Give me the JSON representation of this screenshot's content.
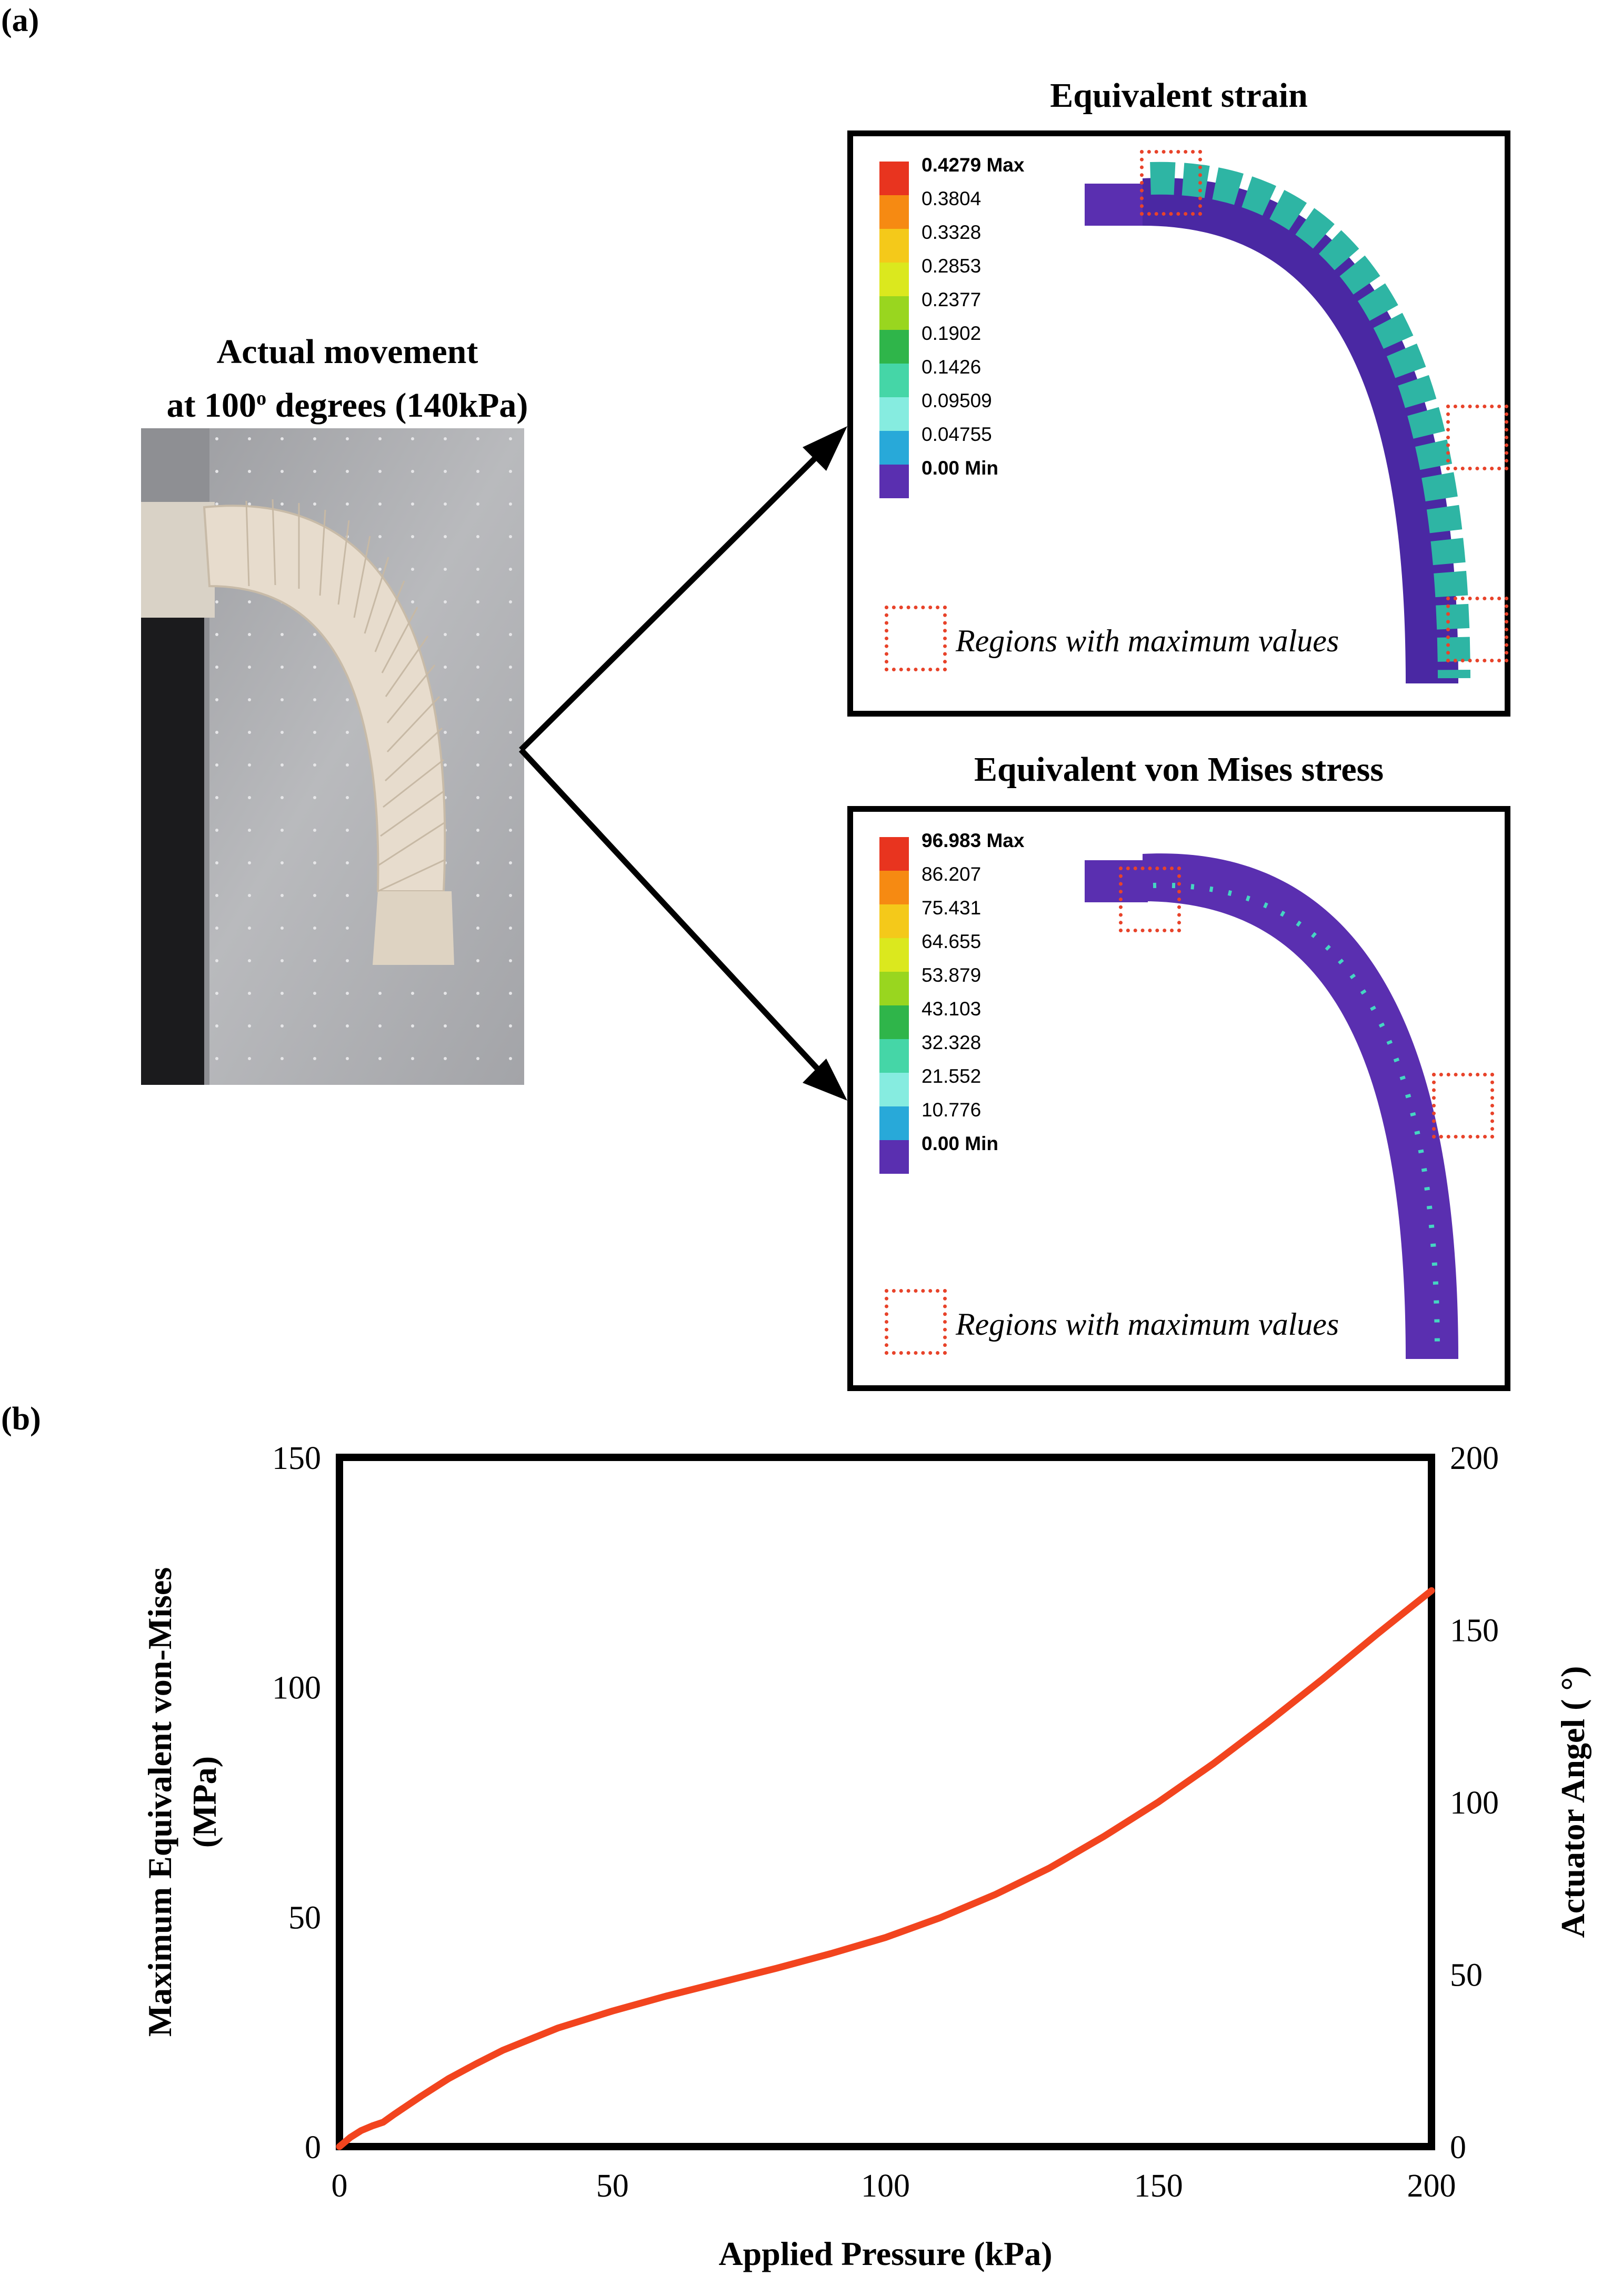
{
  "figure": {
    "panel_a_label": "(a)",
    "panel_b_label": "(b)"
  },
  "photo": {
    "title_line1": "Actual movement",
    "title_line2_pre": "at 100",
    "title_line2_sup": "o",
    "title_line2_post": " degrees (140kPa)"
  },
  "strain": {
    "title": "Equivalent strain",
    "legend": [
      {
        "label": "0.4279 Max",
        "color": "#e8341f"
      },
      {
        "label": "0.3804",
        "color": "#f68a12"
      },
      {
        "label": "0.3328",
        "color": "#f4c91a"
      },
      {
        "label": "0.2853",
        "color": "#dbe81e"
      },
      {
        "label": "0.2377",
        "color": "#99d61f"
      },
      {
        "label": "0.1902",
        "color": "#2fb54a"
      },
      {
        "label": "0.1426",
        "color": "#45d6a7"
      },
      {
        "label": "0.09509",
        "color": "#86ece0"
      },
      {
        "label": "0.04755",
        "color": "#28a9d9"
      },
      {
        "label": "0.00 Min",
        "color": "#5a2fb0"
      }
    ],
    "note": "Regions with maximum values"
  },
  "stress": {
    "title": "Equivalent von Mises stress",
    "legend": [
      {
        "label": "96.983 Max",
        "color": "#e8341f"
      },
      {
        "label": "86.207",
        "color": "#f68a12"
      },
      {
        "label": "75.431",
        "color": "#f4c91a"
      },
      {
        "label": "64.655",
        "color": "#dbe81e"
      },
      {
        "label": "53.879",
        "color": "#99d61f"
      },
      {
        "label": "43.103",
        "color": "#2fb54a"
      },
      {
        "label": "32.328",
        "color": "#45d6a7"
      },
      {
        "label": "21.552",
        "color": "#86ece0"
      },
      {
        "label": "10.776",
        "color": "#28a9d9"
      },
      {
        "label": "0.00 Min",
        "color": "#5a2fb0"
      }
    ],
    "note": "Regions with maximum values"
  },
  "chart_data": {
    "type": "line",
    "title": "",
    "xlabel": "Applied Pressure (kPa)",
    "ylabel_line1": "Maximum Equivalent von-Mises",
    "ylabel_line2": "(MPa)",
    "y2label": "Actuator Angel ( °)",
    "xlim": [
      0,
      200
    ],
    "ylim": [
      0,
      150
    ],
    "y2lim": [
      0,
      200
    ],
    "xticks": [
      "0",
      "50",
      "100",
      "150",
      "200"
    ],
    "yticks": [
      "0",
      "50",
      "100",
      "150"
    ],
    "y2ticks": [
      "0",
      "50",
      "100",
      "150",
      "200"
    ],
    "series": [
      {
        "name": "Maximum Equivalent von-Mises",
        "color": "#f2441e",
        "x": [
          0,
          2,
          4,
          6,
          8,
          10,
          15,
          20,
          25,
          30,
          40,
          50,
          60,
          70,
          80,
          90,
          100,
          110,
          120,
          130,
          140,
          150,
          160,
          170,
          180,
          190,
          200
        ],
        "y": [
          0,
          2.0,
          3.5,
          4.5,
          5.3,
          7.0,
          11.0,
          14.8,
          18.0,
          21.0,
          25.8,
          29.5,
          32.8,
          35.8,
          38.8,
          42.0,
          45.5,
          49.8,
          54.8,
          60.6,
          67.5,
          75.0,
          83.3,
          92.3,
          101.7,
          111.5,
          121.0
        ]
      }
    ]
  }
}
